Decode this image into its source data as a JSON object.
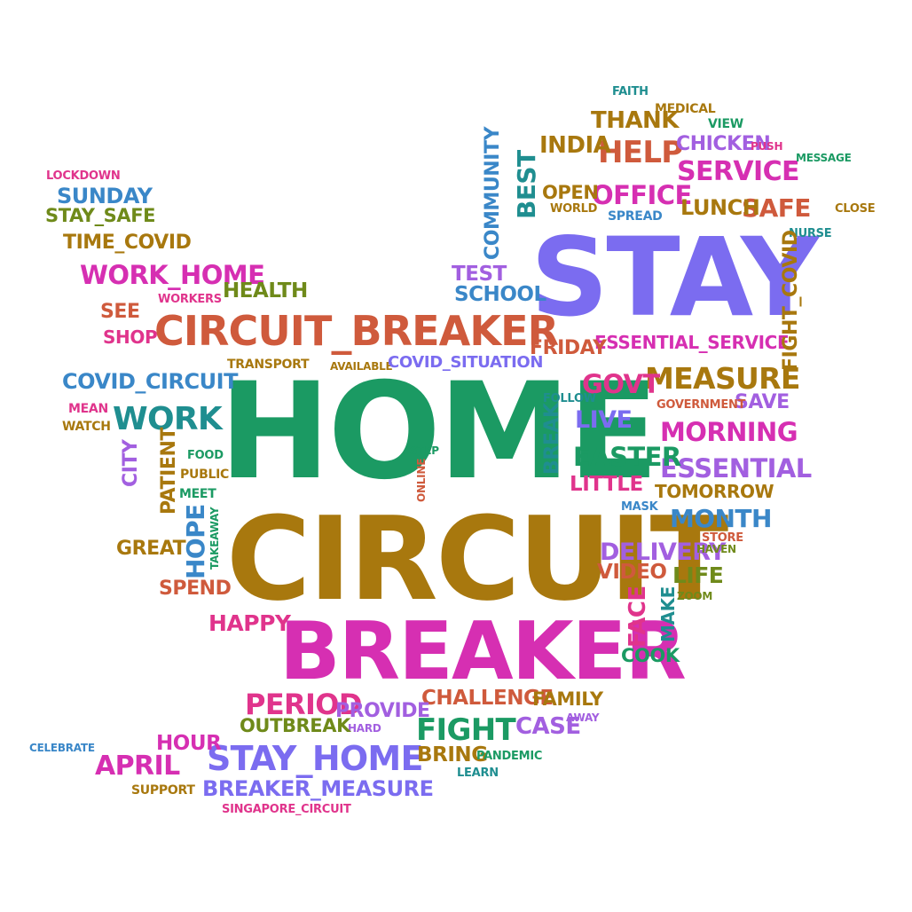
{
  "colors": {
    "magenta": "#d62fb2",
    "green": "#1b9a63",
    "gold": "#a8780e",
    "violet": "#7b6cf0",
    "orange": "#cf5a3c",
    "olive": "#6f8a1a",
    "blue": "#3a87c8",
    "teal": "#1f8e90",
    "purple": "#a25fe0",
    "pink": "#e0348c"
  },
  "words": {
    "home": "HOME",
    "circuit": "CIRCUIT",
    "breaker": "BREAKER",
    "stay": "STAY",
    "circuit_breaker": "CIRCUIT_BREAKER",
    "stay_home": "STAY_HOME",
    "work": "WORK",
    "measure": "MEASURE",
    "essential_service": "ESSENTIAL_SERVICE",
    "service": "SERVICE",
    "help": "HELP",
    "office": "OFFICE",
    "work_home": "WORK_HOME",
    "covid_circuit": "COVID_CIRCUIT",
    "breaker_measure": "BREAKER_MEASURE",
    "fight": "FIGHT",
    "period": "PERIOD",
    "essential": "ESSENTIAL",
    "morning": "MORNING",
    "easter": "EASTER",
    "delivery": "DELIVERY",
    "month": "MONTH",
    "govt": "GOVT",
    "thank": "THANK",
    "india": "INDIA",
    "safe": "SAFE",
    "lunch": "LUNCH",
    "chicken": "CHICKEN",
    "school": "SCHOOL",
    "test": "TEST",
    "community": "COMMUNITY",
    "best": "BEST",
    "open": "OPEN",
    "world": "WORLD",
    "spread": "SPREAD",
    "faith": "FAITH",
    "medical": "MEDICAL",
    "view": "VIEW",
    "push": "PUSH",
    "message": "MESSAGE",
    "close": "CLOSE",
    "nurse": "NURSE",
    "fight_covid": "FIGHT_COVID",
    "friday": "FRIDAY",
    "save": "SAVE",
    "government": "GOVERNMENT",
    "live": "LIVE",
    "follow": "FOLLOW",
    "break": "BREAK",
    "little": "LITTLE",
    "tomorrow": "TOMORROW",
    "mask": "MASK",
    "store": "STORE",
    "haven": "HAVEN",
    "life": "LIFE",
    "video": "VIDEO",
    "zoom": "ZOOM",
    "make": "MAKE",
    "face": "FACE",
    "cook": "COOK",
    "challenge": "CHALLENGE",
    "family": "FAMILY",
    "case": "CASE",
    "away": "AWAY",
    "provide": "PROVIDE",
    "hard": "HARD",
    "outbreak": "OUTBREAK",
    "bring": "BRING",
    "pandemic": "PANDEMIC",
    "learn": "LEARN",
    "singapore_circuit": "SINGAPORE_CIRCUIT",
    "april": "APRIL",
    "hour": "HOUR",
    "support": "SUPPORT",
    "celebrate": "CELEBRATE",
    "happy": "HAPPY",
    "spend": "SPEND",
    "great": "GREAT",
    "hope": "HOPE",
    "takeaway": "TAKEAWAY",
    "city": "CITY",
    "patient": "PATIENT",
    "food": "FOOD",
    "public": "PUBLIC",
    "meet": "MEET",
    "step": "STEP",
    "online": "ONLINE",
    "mean": "MEAN",
    "watch": "WATCH",
    "transport": "TRANSPORT",
    "available": "AVAILABLE",
    "covid_situation": "COVID_SITUATION",
    "see": "SEE",
    "shop": "SHOP",
    "workers": "WORKERS",
    "health": "HEALTH",
    "time_covid": "TIME_COVID",
    "stay_safe": "STAY_SAFE",
    "sunday": "SUNDAY",
    "lockdown": "LOCKDOWN"
  }
}
